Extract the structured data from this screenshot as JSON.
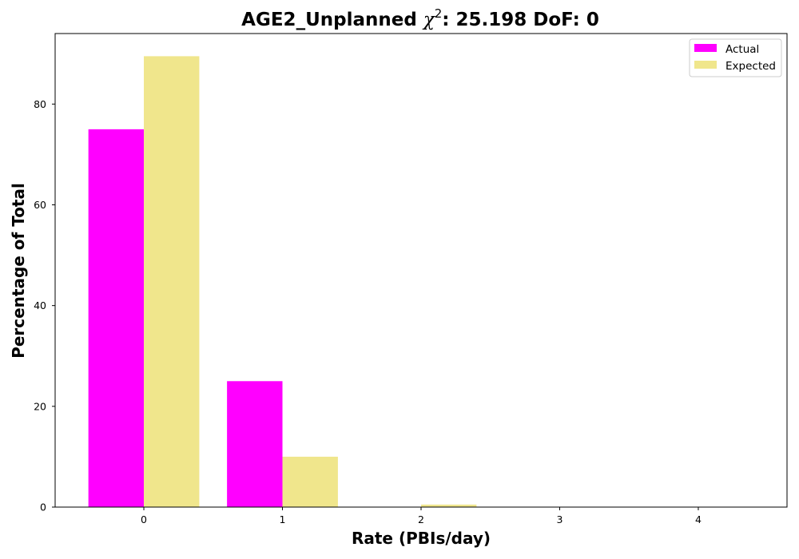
{
  "chart_data": {
    "type": "bar",
    "title": {
      "prefix": "AGE2_Unplanned ",
      "chi_symbol": "χ",
      "chi_exponent": "2",
      "suffix": ": 25.198 DoF: 0"
    },
    "xlabel": "Rate (PBIs/day)",
    "ylabel": "Percentage of Total",
    "categories": [
      "0",
      "1",
      "2",
      "3",
      "4"
    ],
    "x_values": [
      0,
      1,
      2,
      3,
      4
    ],
    "series": [
      {
        "name": "Actual",
        "color": "#ff00ff",
        "values": [
          75.0,
          25.0,
          0,
          0,
          0
        ]
      },
      {
        "name": "Expected",
        "color": "#f0e68c",
        "values": [
          89.5,
          10.0,
          0.5,
          0,
          0
        ]
      }
    ],
    "ylim": [
      0,
      94
    ],
    "xlim": [
      -0.64,
      4.64
    ],
    "y_ticks": [
      0,
      20,
      40,
      60,
      80
    ],
    "y_tick_labels": [
      "0",
      "20",
      "40",
      "60",
      "80"
    ],
    "legend_position": "top-right",
    "grid": false
  }
}
